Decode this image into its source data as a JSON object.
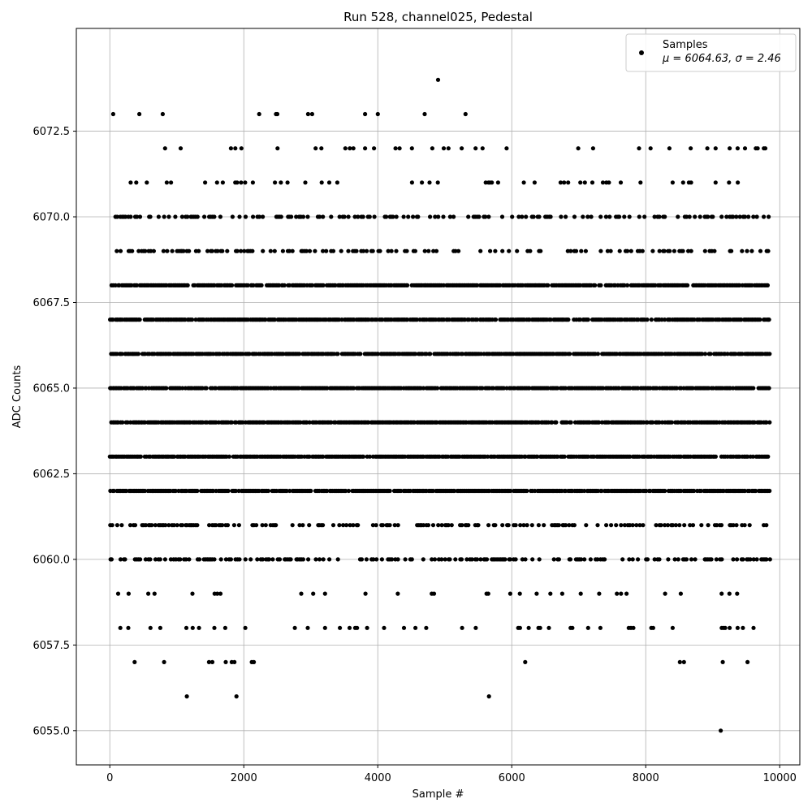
{
  "chart_data": {
    "type": "scatter",
    "title": "Run 528, channel025, Pedestal",
    "xlabel": "Sample #",
    "ylabel": "ADC Counts",
    "xlim": [
      -500,
      10300
    ],
    "ylim": [
      6054.0,
      6075.5
    ],
    "xticks": [
      0,
      2000,
      4000,
      6000,
      8000,
      10000
    ],
    "yticks": [
      6055.0,
      6057.5,
      6060.0,
      6062.5,
      6065.0,
      6067.5,
      6070.0,
      6072.5
    ],
    "xtick_labels": [
      "0",
      "2000",
      "4000",
      "6000",
      "8000",
      "10000"
    ],
    "ytick_labels": [
      "6055.0",
      "6057.5",
      "6060.0",
      "6062.5",
      "6065.0",
      "6067.5",
      "6070.0",
      "6072.5"
    ],
    "grid": true,
    "legend_position": "top-right",
    "marker_color": "#000000",
    "series": [
      {
        "name": "Samples",
        "stats_label": "μ = 6064.63, σ = 2.46",
        "x_range": [
          0,
          9850
        ],
        "y_levels": {
          "dense": [
            6062,
            6063,
            6064,
            6065,
            6066,
            6067,
            6068
          ],
          "medium": [
            6060,
            6061,
            6069,
            6070
          ],
          "sparse": [
            6058,
            6059,
            6071,
            6072
          ]
        },
        "rare_points": [
          {
            "x": 50,
            "y": 6073
          },
          {
            "x": 440,
            "y": 6073
          },
          {
            "x": 790,
            "y": 6073
          },
          {
            "x": 2230,
            "y": 6073
          },
          {
            "x": 2480,
            "y": 6073
          },
          {
            "x": 2500,
            "y": 6073
          },
          {
            "x": 2960,
            "y": 6073
          },
          {
            "x": 3020,
            "y": 6073
          },
          {
            "x": 3810,
            "y": 6073
          },
          {
            "x": 4000,
            "y": 6073
          },
          {
            "x": 4700,
            "y": 6073
          },
          {
            "x": 5310,
            "y": 6073
          },
          {
            "x": 4900,
            "y": 6074
          },
          {
            "x": 370,
            "y": 6057
          },
          {
            "x": 810,
            "y": 6057
          },
          {
            "x": 1480,
            "y": 6057
          },
          {
            "x": 1530,
            "y": 6057
          },
          {
            "x": 1730,
            "y": 6057
          },
          {
            "x": 1820,
            "y": 6057
          },
          {
            "x": 1860,
            "y": 6057
          },
          {
            "x": 2120,
            "y": 6057
          },
          {
            "x": 2150,
            "y": 6057
          },
          {
            "x": 6200,
            "y": 6057
          },
          {
            "x": 8510,
            "y": 6057
          },
          {
            "x": 8570,
            "y": 6057
          },
          {
            "x": 9150,
            "y": 6057
          },
          {
            "x": 9520,
            "y": 6057
          },
          {
            "x": 1150,
            "y": 6056
          },
          {
            "x": 1890,
            "y": 6056
          },
          {
            "x": 5660,
            "y": 6056
          },
          {
            "x": 9120,
            "y": 6055
          }
        ]
      }
    ]
  }
}
